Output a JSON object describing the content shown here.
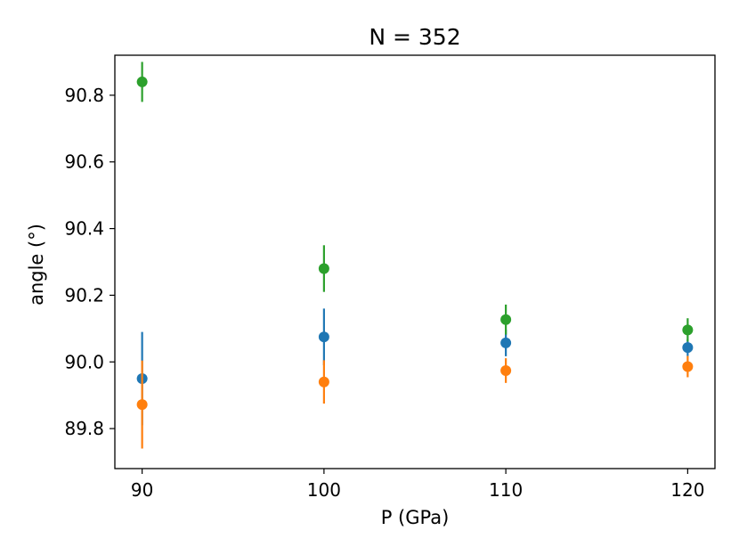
{
  "chart_data": {
    "type": "scatter",
    "title": "N = 352",
    "xlabel": "P (GPa)",
    "ylabel": "angle (°)",
    "xlim": [
      88.5,
      121.5
    ],
    "ylim": [
      89.68,
      90.92
    ],
    "xticks": [
      90,
      100,
      110,
      120
    ],
    "xtick_labels": [
      "90",
      "100",
      "110",
      "120"
    ],
    "yticks": [
      89.8,
      90.0,
      90.2,
      90.4,
      90.6,
      90.8
    ],
    "ytick_labels": [
      "89.8",
      "90.0",
      "90.2",
      "90.4",
      "90.6",
      "90.8"
    ],
    "grid": false,
    "legend": "none",
    "series": [
      {
        "color": "#1f77b4",
        "points": [
          {
            "x": 90,
            "y": 89.95,
            "err": 0.14
          },
          {
            "x": 100,
            "y": 90.075,
            "err": 0.085
          },
          {
            "x": 110,
            "y": 90.057,
            "err": 0.04
          },
          {
            "x": 120,
            "y": 90.043,
            "err": 0.025
          }
        ]
      },
      {
        "color": "#ff7f0e",
        "points": [
          {
            "x": 90,
            "y": 89.872,
            "err": 0.132
          },
          {
            "x": 100,
            "y": 89.94,
            "err": 0.065
          },
          {
            "x": 110,
            "y": 89.974,
            "err": 0.037
          },
          {
            "x": 120,
            "y": 89.986,
            "err": 0.032
          }
        ]
      },
      {
        "color": "#2ca02c",
        "points": [
          {
            "x": 90,
            "y": 90.84,
            "err": 0.06
          },
          {
            "x": 100,
            "y": 90.28,
            "err": 0.07
          },
          {
            "x": 110,
            "y": 90.127,
            "err": 0.045
          },
          {
            "x": 120,
            "y": 90.096,
            "err": 0.035
          }
        ]
      }
    ]
  }
}
